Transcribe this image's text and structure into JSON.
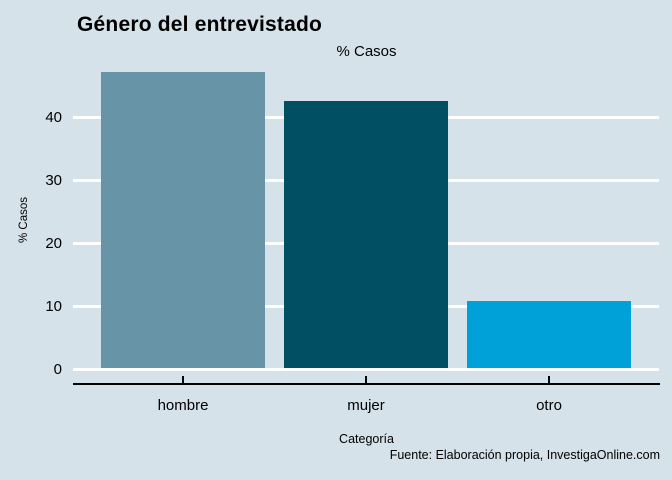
{
  "footer": {
    "source": "Fuente: Elaboración propia, InvestigaOnline.com"
  },
  "colors": {
    "background": "#d5e2e9",
    "gridline": "#ffffff",
    "axis_line": "#000000",
    "text": "#000000"
  },
  "chart_data": {
    "type": "bar",
    "title": "Género del entrevistado",
    "subtitle": "% Casos",
    "categories": [
      "hombre",
      "mujer",
      "otro"
    ],
    "values": [
      47.0,
      42.4,
      10.6
    ],
    "bar_colors": [
      "#6795a7",
      "#014f63",
      "#00a0d8"
    ],
    "xlabel": "Categoría",
    "ylabel": "% Casos",
    "yticks": [
      0,
      10,
      20,
      30,
      40
    ],
    "ylim": [
      0,
      48
    ],
    "grid": true,
    "grid_color": "#ffffff",
    "legend": false
  }
}
